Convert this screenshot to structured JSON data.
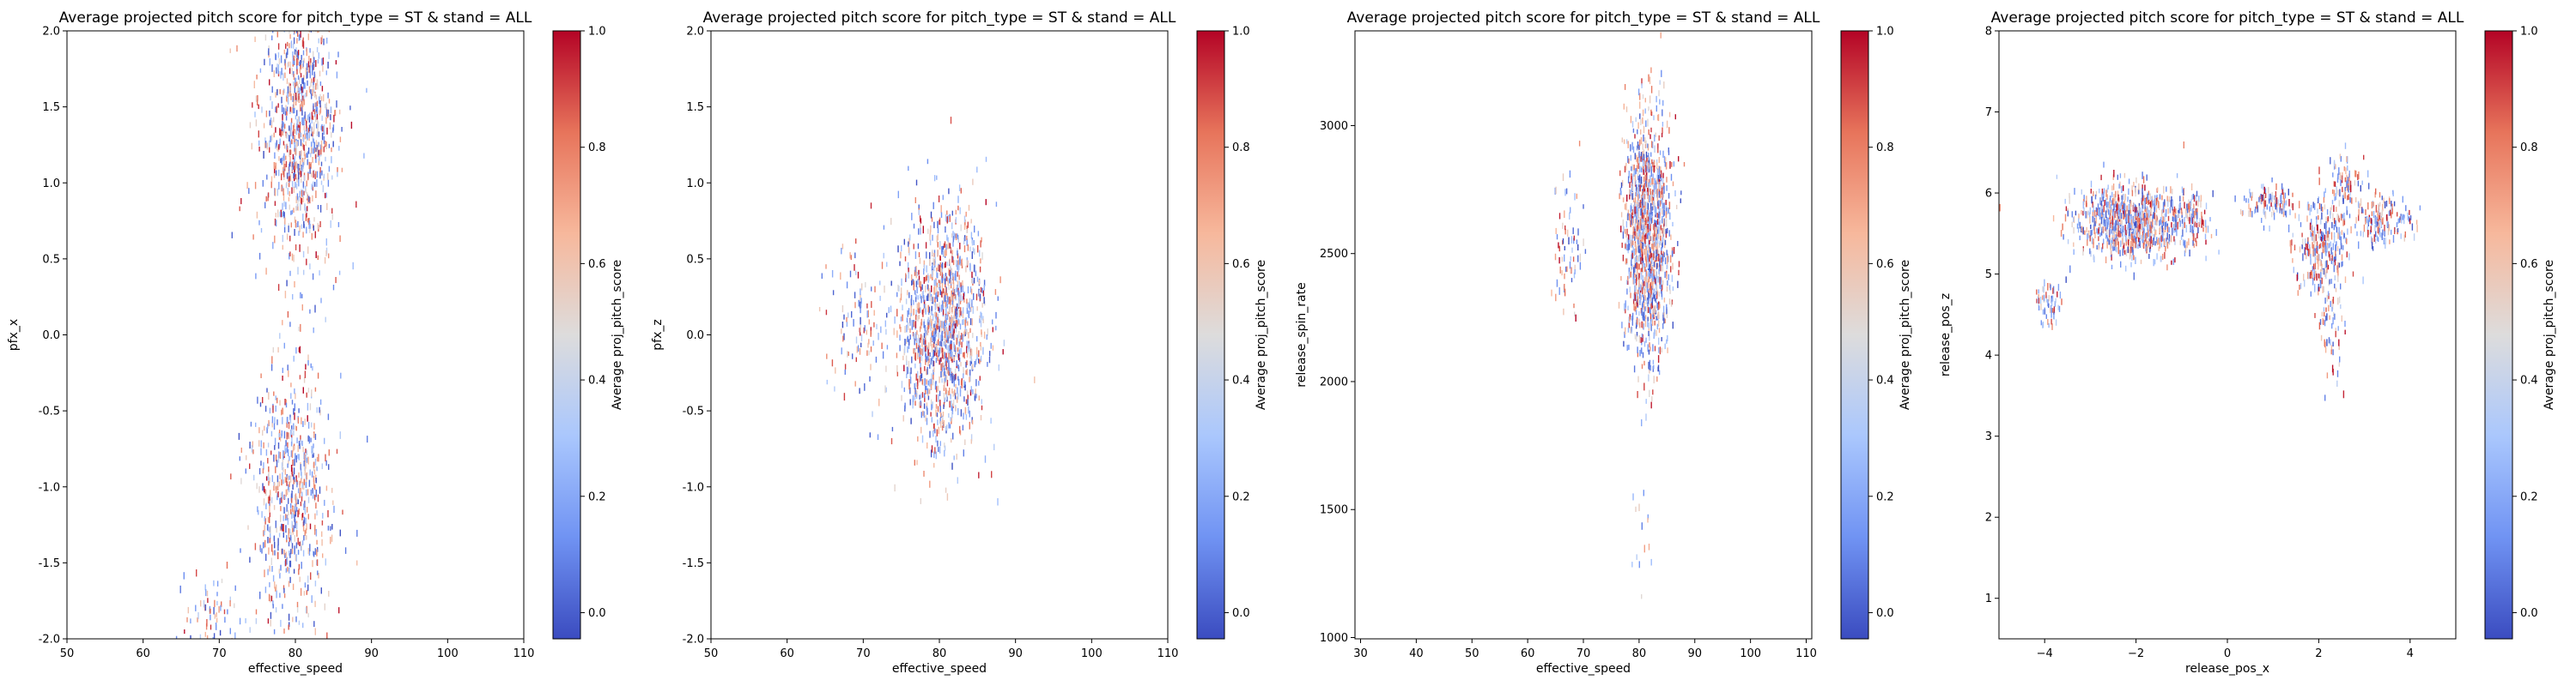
{
  "colormap": [
    "#3b4cc0",
    "#7093f3",
    "#aac7fd",
    "#dddcdc",
    "#f7b89c",
    "#e7745b",
    "#b40426"
  ],
  "chart_data": [
    {
      "type": "scatter",
      "title": "Average projected pitch score for pitch_type = ST & stand = ALL",
      "xlabel": "effective_speed",
      "ylabel": "pfx_x",
      "xlim": [
        50,
        110
      ],
      "ylim": [
        -2.0,
        2.0
      ],
      "xticks": [
        "50",
        "60",
        "70",
        "80",
        "90",
        "100",
        "110"
      ],
      "yticks": [
        "-2.0",
        "-1.5",
        "-1.0",
        "-0.5",
        "0.0",
        "0.5",
        "1.0",
        "1.5",
        "2.0"
      ],
      "colorbar": {
        "label": "Average proj_pitch_score",
        "ticks": [
          "0.0",
          "0.2",
          "0.4",
          "0.6",
          "0.8",
          "1.0"
        ]
      },
      "clusters": [
        {
          "cx": 80.5,
          "cy": 1.35,
          "sx": 2.6,
          "sy": 0.45,
          "n": 900
        },
        {
          "cx": 79.5,
          "cy": -1.05,
          "sx": 2.6,
          "sy": 0.45,
          "n": 650
        },
        {
          "cx": 69.0,
          "cy": -1.85,
          "sx": 1.8,
          "sy": 0.12,
          "n": 70
        }
      ]
    },
    {
      "type": "scatter",
      "title": "Average projected pitch score for pitch_type = ST & stand = ALL",
      "xlabel": "effective_speed",
      "ylabel": "pfx_z",
      "xlim": [
        50,
        110
      ],
      "ylim": [
        -2.0,
        2.0
      ],
      "xticks": [
        "50",
        "60",
        "70",
        "80",
        "90",
        "100",
        "110"
      ],
      "yticks": [
        "-2.0",
        "-1.5",
        "-1.0",
        "-0.5",
        "0.0",
        "0.5",
        "1.0",
        "1.5",
        "2.0"
      ],
      "colorbar": {
        "label": "Average proj_pitch_score",
        "ticks": [
          "0.0",
          "0.2",
          "0.4",
          "0.6",
          "0.8",
          "1.0"
        ]
      },
      "clusters": [
        {
          "cx": 80.5,
          "cy": 0.05,
          "sx": 2.8,
          "sy": 0.38,
          "n": 1300
        },
        {
          "cx": 69.5,
          "cy": 0.1,
          "sx": 2.2,
          "sy": 0.25,
          "n": 110
        }
      ]
    },
    {
      "type": "scatter",
      "title": "Average projected pitch score for pitch_type = ST & stand = ALL",
      "xlabel": "effective_speed",
      "ylabel": "release_spin_rate",
      "xlim": [
        29,
        111
      ],
      "ylim": [
        995,
        3370
      ],
      "xticks": [
        "30",
        "40",
        "50",
        "60",
        "70",
        "80",
        "90",
        "100",
        "110"
      ],
      "yticks": [
        "1000",
        "1500",
        "2000",
        "2500",
        "3000"
      ],
      "colorbar": {
        "label": "Average proj_pitch_score",
        "ticks": [
          "0.0",
          "0.2",
          "0.4",
          "0.6",
          "0.8",
          "1.0"
        ]
      },
      "clusters": [
        {
          "cx": 81.5,
          "cy": 2560,
          "sx": 2.0,
          "sy": 240,
          "n": 1250
        },
        {
          "cx": 67.5,
          "cy": 2500,
          "sx": 1.3,
          "sy": 130,
          "n": 70
        },
        {
          "cx": 80.5,
          "cy": 1380,
          "sx": 1.2,
          "sy": 110,
          "n": 14
        }
      ]
    },
    {
      "type": "scatter",
      "title": "Average projected pitch score for pitch_type = ST & stand = ALL",
      "xlabel": "release_pos_x",
      "ylabel": "release_pos_z",
      "xlim": [
        -5.0,
        5.0
      ],
      "ylim": [
        0.5,
        8.0
      ],
      "xticks": [
        "−4",
        "−2",
        "0",
        "2",
        "4"
      ],
      "yticks": [
        "1",
        "2",
        "3",
        "4",
        "5",
        "6",
        "7",
        "8"
      ],
      "colorbar": {
        "label": "Average proj_pitch_score",
        "ticks": [
          "0.0",
          "0.2",
          "0.4",
          "0.6",
          "0.8",
          "1.0"
        ]
      },
      "clusters": [
        {
          "cx": -2.1,
          "cy": 5.65,
          "sx": 0.6,
          "sy": 0.22,
          "n": 900
        },
        {
          "cx": -3.9,
          "cy": 4.65,
          "sx": 0.15,
          "sy": 0.14,
          "n": 60
        },
        {
          "cx": -0.8,
          "cy": 5.7,
          "sx": 0.2,
          "sy": 0.18,
          "n": 90
        },
        {
          "cx": 0.9,
          "cy": 5.9,
          "sx": 0.3,
          "sy": 0.1,
          "n": 110
        },
        {
          "cx": 2.1,
          "cy": 5.3,
          "sx": 0.3,
          "sy": 0.3,
          "n": 280
        },
        {
          "cx": 3.4,
          "cy": 5.65,
          "sx": 0.35,
          "sy": 0.15,
          "n": 150
        },
        {
          "cx": 2.6,
          "cy": 6.1,
          "sx": 0.2,
          "sy": 0.2,
          "n": 80
        },
        {
          "cx": 2.3,
          "cy": 4.3,
          "sx": 0.12,
          "sy": 0.35,
          "n": 55
        }
      ]
    }
  ]
}
